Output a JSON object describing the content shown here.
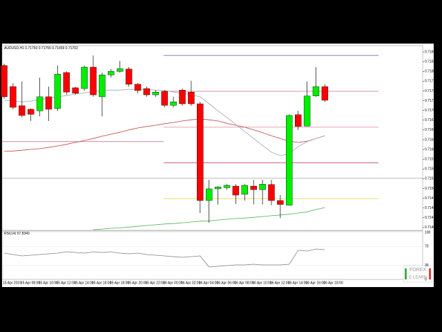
{
  "chart_data": [
    {
      "type": "candlestick",
      "title": "AUDUSD,H1 0.71750 0.71755 0.71659 0.71702",
      "categories": [
        "15 Apr 2019",
        null,
        "15 Apr 08:00",
        null,
        "15 Apr 10:00",
        null,
        "15 Apr 12:00",
        null,
        "15 Apr 14:00",
        null,
        "15 Apr 16:00",
        null,
        "15 Apr 18:00",
        null,
        "15 Apr 20:00",
        null,
        "15 Apr 22:00",
        null,
        "16 Apr 00:00",
        null,
        "16 Apr 02:00",
        null,
        "16 Apr 04:00",
        null,
        "16 Apr 06:00",
        null,
        "16 Apr 08:00",
        null,
        "16 Apr 10:00",
        null,
        "16 Apr 12:00",
        null,
        "16 Apr 14:00",
        null,
        "16 Apr 16:00",
        null,
        "16 Apr 18:00"
      ],
      "open": [
        0.71815,
        0.71761,
        0.71712,
        0.71703,
        0.71699,
        0.71735,
        0.71705,
        0.71797,
        0.71758,
        0.71756,
        0.71811,
        0.71735,
        0.71791,
        0.718,
        0.71806,
        0.71767,
        0.71756,
        0.7174,
        0.71749,
        0.71713,
        0.71752,
        0.71747,
        0.71717,
        0.71469,
        0.71499,
        0.71502,
        0.71506,
        0.71485,
        0.71506,
        0.71497,
        0.7151,
        0.71469,
        0.71457,
        0.71689,
        0.7166,
        0.71737,
        0.71761
      ],
      "high": [
        0.7182,
        0.7177,
        0.71774,
        0.71705,
        0.71784,
        0.71761,
        0.71815,
        0.718,
        0.7176,
        0.71815,
        0.71841,
        0.71797,
        0.71806,
        0.71827,
        0.71811,
        0.7177,
        0.71761,
        0.71752,
        0.71752,
        0.71735,
        0.71756,
        0.71776,
        0.71722,
        0.71522,
        0.71506,
        0.71511,
        0.71511,
        0.71511,
        0.71522,
        0.71522,
        0.71522,
        0.71483,
        0.7169,
        0.71699,
        0.71774,
        0.71811,
        0.71767
      ],
      "low": [
        0.7173,
        0.71703,
        0.71682,
        0.71673,
        0.71685,
        0.71673,
        0.71699,
        0.7174,
        0.7174,
        0.7175,
        0.71735,
        0.71685,
        0.71784,
        0.71797,
        0.71761,
        0.71744,
        0.71735,
        0.71735,
        0.71708,
        0.71708,
        0.71712,
        0.71712,
        0.71437,
        0.71412,
        0.71459,
        0.71497,
        0.7146,
        0.71469,
        0.71459,
        0.71459,
        0.71457,
        0.71424,
        0.71457,
        0.7165,
        0.71659,
        0.71735,
        0.71722
      ],
      "close": [
        0.71735,
        0.71708,
        0.71687,
        0.7169,
        0.71735,
        0.71703,
        0.71793,
        0.71747,
        0.71744,
        0.71811,
        0.7174,
        0.71791,
        0.718,
        0.71807,
        0.71767,
        0.71751,
        0.7174,
        0.71747,
        0.71713,
        0.71722,
        0.71717,
        0.71717,
        0.71469,
        0.71499,
        0.71504,
        0.71508,
        0.71483,
        0.71508,
        0.71497,
        0.71511,
        0.71469,
        0.71459,
        0.71687,
        0.71659,
        0.71737,
        0.71761,
        0.71726
      ],
      "up_color": "#00ee00",
      "down_color": "#ff0000",
      "ylim": [
        0.7139,
        0.71866
      ],
      "yticks": [
        {
          "value": 0.7185,
          "label": "0.71850"
        },
        0.71825,
        {
          "value": 0.718,
          "label": "0.71800"
        },
        0.71775,
        {
          "value": 0.7175,
          "label": "0.71750"
        },
        0.71725,
        {
          "value": 0.717,
          "label": "0.71700"
        },
        0.71675,
        {
          "value": 0.7165,
          "label": "0.71650"
        },
        0.71625,
        {
          "value": 0.716,
          "label": "0.71600"
        },
        0.71575,
        {
          "value": 0.7155,
          "label": "0.71550"
        },
        0.71525,
        {
          "value": 0.715,
          "label": "0.71500"
        },
        0.71475,
        {
          "value": 0.7145,
          "label": "0.71450"
        },
        0.71425,
        {
          "value": 0.714,
          "label": "0.71400"
        }
      ],
      "lines": [
        {
          "color": "#c04040",
          "values": [
            0.71595,
            0.71596,
            0.71598,
            0.716,
            0.71602,
            0.71605,
            0.71609,
            0.71613,
            0.71618,
            0.71623,
            0.71628,
            0.71634,
            0.71639,
            0.71644,
            0.7165,
            0.71655,
            0.71659,
            0.71662,
            0.71666,
            0.71669,
            0.71673,
            0.71676,
            0.71678,
            0.71676,
            0.71673,
            0.71667,
            0.71662,
            0.71657,
            0.7165,
            0.71643,
            0.71635,
            0.71628,
            0.71621,
            0.71618,
            0.71621,
            0.71628,
            0.71635
          ]
        },
        {
          "color": "#9aa8b0",
          "values": [
            0.71726,
            0.71724,
            0.71722,
            0.71724,
            0.71728,
            0.71731,
            0.71735,
            0.71738,
            0.71742,
            0.71745,
            0.71749,
            0.71751,
            0.71752,
            0.71752,
            0.71754,
            0.71754,
            0.71754,
            0.71752,
            0.71751,
            0.71747,
            0.71744,
            0.7174,
            0.71735,
            0.71717,
            0.71699,
            0.71682,
            0.71664,
            0.71646,
            0.71628,
            0.7161,
            0.71593,
            0.71584,
            0.71589,
            0.71607,
            0.7162,
            0.71628,
            0.71635
          ]
        },
        {
          "color": "#50b050",
          "values": [
            null,
            null,
            null,
            null,
            null,
            null,
            null,
            null,
            null,
            null,
            0.71394,
            0.71396,
            0.71398,
            0.71399,
            0.71401,
            0.71403,
            0.71405,
            0.71407,
            0.71409,
            0.7141,
            0.71412,
            0.71414,
            0.71416,
            0.71417,
            0.71419,
            0.71421,
            0.71423,
            0.71424,
            0.71426,
            0.71428,
            0.7143,
            0.71432,
            0.71434,
            0.71437,
            0.7144,
            0.71446,
            0.71451
          ]
        }
      ],
      "levels": [
        {
          "value": 0.71841,
          "color": "#605080"
        },
        {
          "value": 0.71749,
          "color": "#c07090"
        },
        {
          "value": 0.71657,
          "color": "#e08090"
        },
        {
          "value": 0.7162,
          "color": "#c06080"
        },
        {
          "value": 0.71566,
          "color": "#c02040"
        },
        {
          "value": 0.71526,
          "color": "#a0a0a0"
        },
        {
          "value": 0.71474,
          "color": "#e0d040"
        }
      ]
    },
    {
      "type": "line",
      "title": "RSI(14) 57.8340",
      "color": "#808080",
      "values": [
        55.9,
        52.9,
        50.0,
        51.5,
        52.9,
        54.4,
        55.9,
        58.8,
        57.4,
        55.9,
        58.8,
        57.4,
        58.8,
        55.9,
        54.4,
        55.9,
        52.9,
        51.5,
        50.0,
        48.5,
        47.1,
        48.5,
        50.0,
        26.5,
        27.9,
        29.4,
        30.9,
        30.9,
        32.4,
        30.9,
        30.9,
        30.9,
        32.4,
        61.8,
        60.3,
        64.7,
        63.2
      ],
      "ylim": [
        0,
        100
      ],
      "yticks": [
        100,
        70,
        30,
        0
      ]
    }
  ],
  "logo": {
    "line1": "FOREX",
    "line2": "E-LEARN"
  }
}
